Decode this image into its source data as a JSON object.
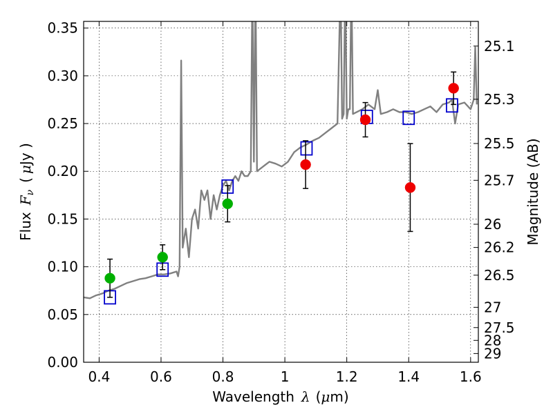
{
  "chart_data": {
    "type": "scatter",
    "title": "",
    "xlabel": "Wavelength",
    "xlabel_math": "λ",
    "xlabel_unit_open": "(",
    "xlabel_unit_mu": "μ",
    "xlabel_unit_rest": "m)",
    "ylabel": "Flux",
    "ylabel_math": "F",
    "ylabel_math_sub": "ν",
    "ylabel_unit_open": "(",
    "ylabel_unit_mu": "μ",
    "ylabel_unit_rest": "Jy )",
    "ylabel_right": "Magnitude (AB)",
    "xlim": [
      0.35,
      1.625
    ],
    "ylim": [
      0.0,
      0.357
    ],
    "grid": true,
    "x_ticks": [
      0.4,
      0.6,
      0.8,
      1.0,
      1.2,
      1.4,
      1.6
    ],
    "x_tick_labels": [
      "0.4",
      "0.6",
      "0.8",
      "1",
      "1.2",
      "1.4",
      "1.6"
    ],
    "y_ticks": [
      0.0,
      0.05,
      0.1,
      0.15,
      0.2,
      0.25,
      0.3,
      0.35
    ],
    "y_tick_labels": [
      "0.00",
      "0.05",
      "0.10",
      "0.15",
      "0.20",
      "0.25",
      "0.30",
      "0.35"
    ],
    "right_ticks": [
      {
        "mag": 25.1,
        "label": "25.1"
      },
      {
        "mag": 25.3,
        "label": "25.3"
      },
      {
        "mag": 25.5,
        "label": "25.5"
      },
      {
        "mag": 25.7,
        "label": "25.7"
      },
      {
        "mag": 26.0,
        "label": "26"
      },
      {
        "mag": 26.2,
        "label": "26.2"
      },
      {
        "mag": 26.5,
        "label": "26.5"
      },
      {
        "mag": 27.0,
        "label": "27"
      },
      {
        "mag": 27.5,
        "label": "27.5"
      },
      {
        "mag": 28.0,
        "label": "28"
      },
      {
        "mag": 29.0,
        "label": "29"
      }
    ],
    "colors": {
      "template": "#808080",
      "model": "#0000cc",
      "optical": "#00b000",
      "infrared": "#ee0000",
      "errorbar": "#000000"
    },
    "series": [
      {
        "type": "line",
        "color": "#808080",
        "x": [
          0.35,
          0.37,
          0.39,
          0.41,
          0.43,
          0.45,
          0.47,
          0.49,
          0.51,
          0.53,
          0.55,
          0.57,
          0.59,
          0.61,
          0.63,
          0.65,
          0.655,
          0.66,
          0.665,
          0.67,
          0.675,
          0.68,
          0.69,
          0.7,
          0.71,
          0.72,
          0.73,
          0.74,
          0.75,
          0.76,
          0.77,
          0.78,
          0.79,
          0.8,
          0.81,
          0.82,
          0.83,
          0.84,
          0.85,
          0.86,
          0.87,
          0.88,
          0.89,
          0.895,
          0.9,
          0.905,
          0.91,
          0.93,
          0.95,
          0.97,
          0.99,
          1.01,
          1.03,
          1.05,
          1.07,
          1.09,
          1.11,
          1.13,
          1.15,
          1.17,
          1.18,
          1.185,
          1.19,
          1.195,
          1.2,
          1.205,
          1.21,
          1.215,
          1.22,
          1.25,
          1.27,
          1.29,
          1.3,
          1.31,
          1.33,
          1.35,
          1.37,
          1.39,
          1.41,
          1.43,
          1.45,
          1.47,
          1.49,
          1.51,
          1.53,
          1.54,
          1.55,
          1.56,
          1.58,
          1.6,
          1.61,
          1.615,
          1.62
        ],
        "y": [
          0.068,
          0.067,
          0.07,
          0.072,
          0.075,
          0.077,
          0.08,
          0.083,
          0.085,
          0.087,
          0.088,
          0.09,
          0.092,
          0.092,
          0.093,
          0.095,
          0.09,
          0.1,
          0.316,
          0.12,
          0.13,
          0.14,
          0.11,
          0.15,
          0.16,
          0.14,
          0.18,
          0.17,
          0.18,
          0.15,
          0.175,
          0.16,
          0.175,
          0.185,
          0.19,
          0.18,
          0.19,
          0.195,
          0.19,
          0.2,
          0.195,
          0.195,
          0.2,
          0.4,
          0.21,
          0.4,
          0.2,
          0.205,
          0.21,
          0.208,
          0.205,
          0.21,
          0.22,
          0.225,
          0.228,
          0.232,
          0.235,
          0.24,
          0.245,
          0.25,
          0.4,
          0.255,
          0.26,
          0.4,
          0.255,
          0.265,
          0.265,
          0.4,
          0.26,
          0.265,
          0.27,
          0.265,
          0.285,
          0.26,
          0.262,
          0.265,
          0.262,
          0.262,
          0.26,
          0.262,
          0.265,
          0.268,
          0.262,
          0.27,
          0.272,
          0.275,
          0.25,
          0.27,
          0.272,
          0.265,
          0.275,
          0.33,
          0.27
        ]
      },
      {
        "type": "scatter",
        "marker": "square-open",
        "color": "#0000cc",
        "x": [
          0.435,
          0.605,
          0.815,
          1.07,
          1.265,
          1.4,
          1.54
        ],
        "y": [
          0.068,
          0.097,
          0.184,
          0.224,
          0.257,
          0.256,
          0.269
        ]
      },
      {
        "type": "scatter",
        "marker": "circle",
        "color": "#00b000",
        "x": [
          0.435,
          0.605,
          0.815
        ],
        "y": [
          0.088,
          0.11,
          0.166
        ],
        "yerr": [
          0.02,
          0.013,
          0.019
        ]
      },
      {
        "type": "scatter",
        "marker": "circle",
        "color": "#ee0000",
        "x": [
          1.067,
          1.26,
          1.405,
          1.545
        ],
        "y": [
          0.207,
          0.254,
          0.183,
          0.287
        ],
        "yerr": [
          0.025,
          0.018,
          0.046,
          0.017
        ]
      }
    ]
  }
}
